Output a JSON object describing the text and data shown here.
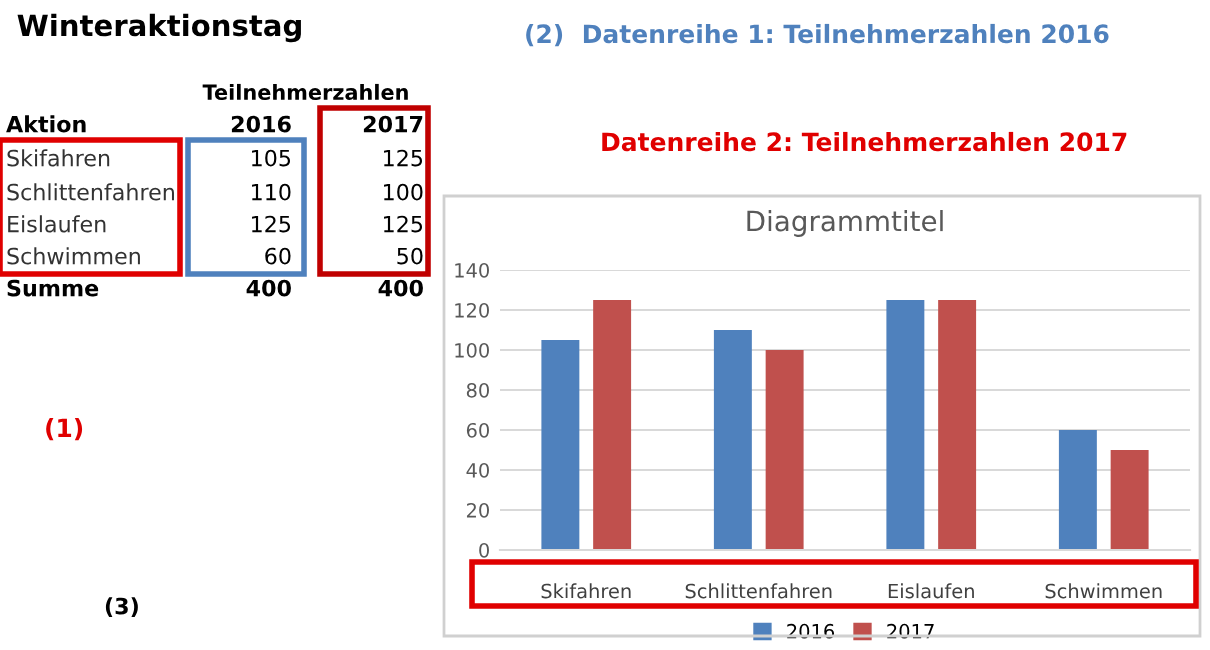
{
  "chart_data": {
    "type": "bar",
    "title": "Diagrammtitel",
    "categories": [
      "Skifahren",
      "Schlittenfahren",
      "Eislaufen",
      "Schwimmen"
    ],
    "series": [
      {
        "name": "2016",
        "color": "#4f81bd",
        "values": [
          105,
          110,
          125,
          60
        ]
      },
      {
        "name": "2017",
        "color": "#c0504d",
        "values": [
          125,
          100,
          125,
          50
        ]
      }
    ],
    "ylim": [
      0,
      140
    ],
    "yticks": [
      0,
      20,
      40,
      60,
      80,
      100,
      120,
      140
    ],
    "grid": "y",
    "legend": "bottom",
    "annotations": [
      "Winteraktionstag",
      "Teilnehmerzahlen",
      "Aktion",
      "Summe",
      "400",
      "400",
      "(1)",
      "(2)  Datenreihe 1: Teilnehmerzahlen 2016",
      "Datenreihe 2: Teilnehmerzahlen 2017",
      "(3)",
      "105",
      "110",
      "125",
      "60",
      "125",
      "100",
      "125",
      "50"
    ]
  }
}
